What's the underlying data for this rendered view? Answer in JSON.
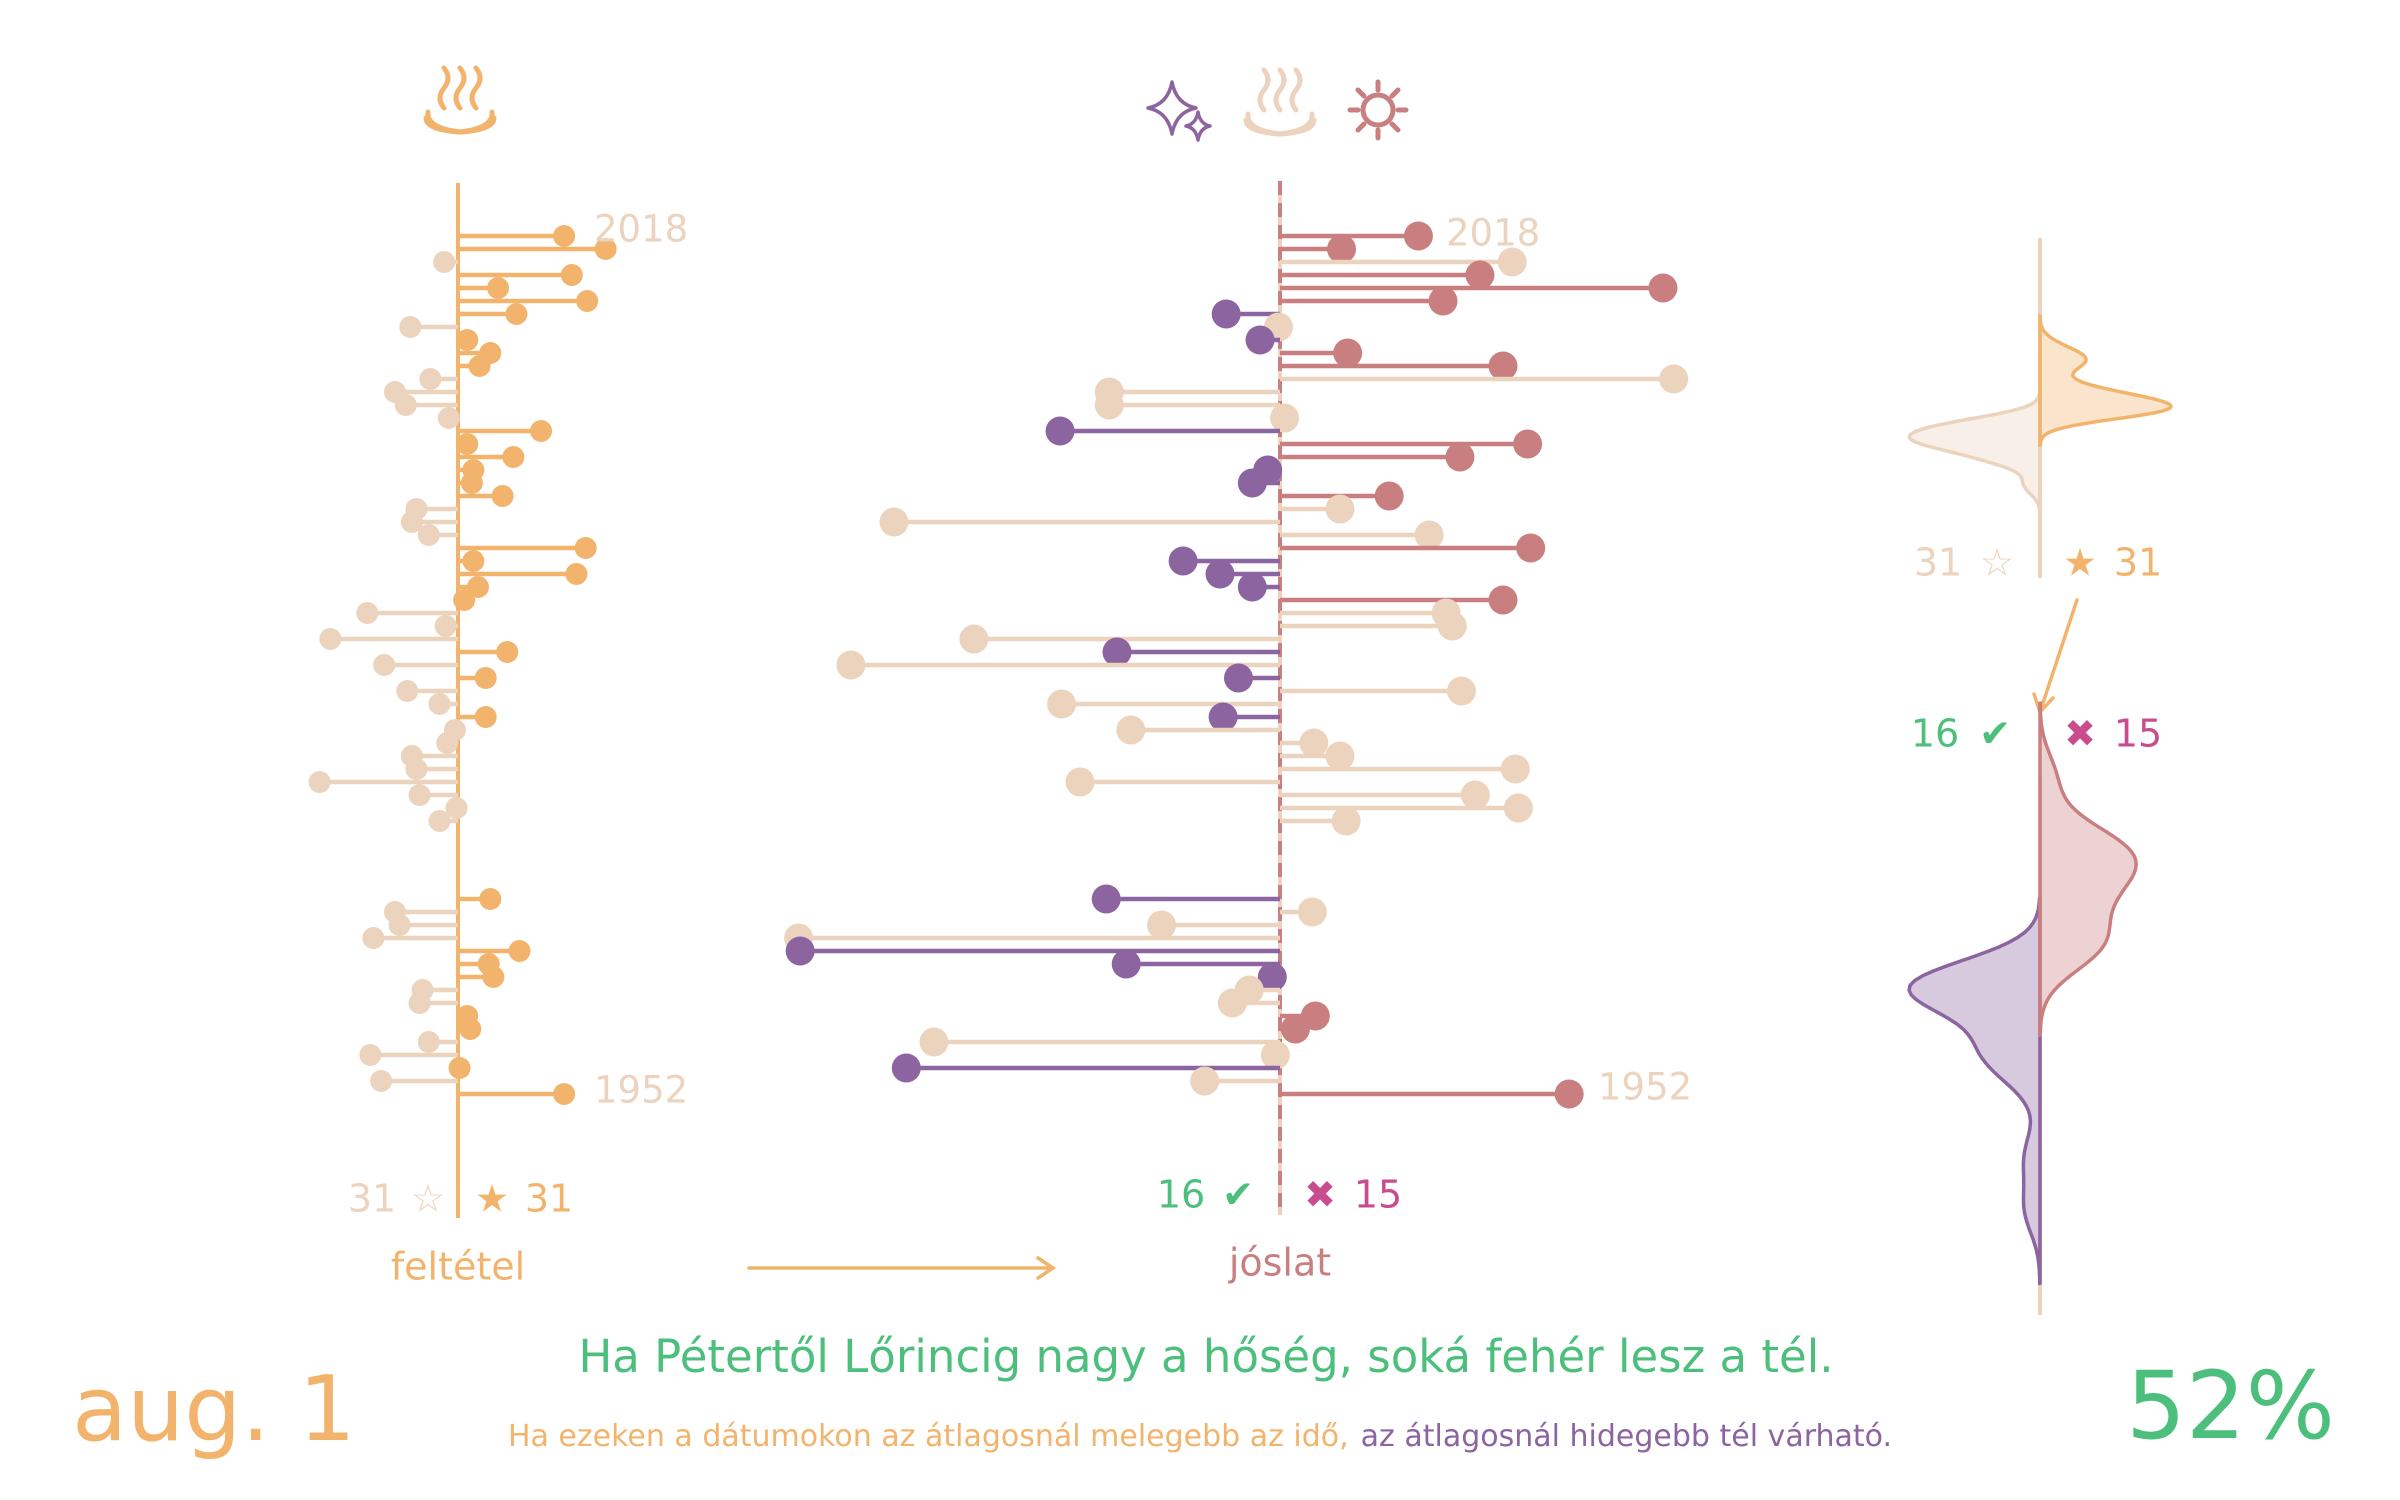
{
  "date": "aug. 1",
  "proverb": "Ha Pétertől Lőrincig nagy a hőség, soká fehér lesz a tél.",
  "explanation": {
    "warm": "Ha ezeken a dátumokon az átlagosnál melegebb az idő,",
    "cold": "az átlagosnál hidegebb tél várható."
  },
  "accuracy": {
    "value": 52,
    "label": "52%"
  },
  "chart_data": [
    {
      "type": "lollipop",
      "label": "feltétel",
      "first_year": 2018,
      "last_year": 1952,
      "values": [
        6.9,
        9.6,
        -0.9,
        7.4,
        2.6,
        8.4,
        3.8,
        -3.1,
        0.6,
        2.1,
        1.4,
        -1.8,
        -4.1,
        -3.4,
        -0.6,
        5.4,
        0.6,
        3.6,
        1.0,
        0.9,
        2.9,
        -2.7,
        -3.0,
        -1.9,
        8.3,
        1.0,
        7.7,
        1.3,
        0.4,
        -5.9,
        -0.8,
        -8.3,
        3.2,
        -4.8,
        1.8,
        -3.3,
        -1.2,
        1.8,
        -0.2,
        -0.7,
        -3.0,
        -2.7,
        -9.0,
        -2.5,
        -0.1,
        -1.2,
        null,
        null,
        null,
        null,
        null,
        2.1,
        -4.1,
        -3.8,
        -5.5,
        4.0,
        2.0,
        2.3,
        -2.3,
        -2.5,
        0.6,
        0.8,
        -1.9,
        -5.7,
        0.1,
        -5.0,
        6.9
      ],
      "counts": {
        "below": 31,
        "above": 31
      },
      "symbols": {
        "below": "☆",
        "above": "★"
      },
      "colors": {
        "above": "#f2b46c",
        "below": "#ebd3bd"
      }
    },
    {
      "type": "lollipop",
      "label": "jóslat",
      "first_year": 2018,
      "last_year": 1952,
      "values": [
        9.0,
        4.0,
        15.1,
        13.0,
        24.9,
        10.6,
        -3.5,
        -0.1,
        -1.3,
        4.4,
        14.5,
        25.6,
        -11.1,
        -11.1,
        0.3,
        -14.3,
        16.1,
        11.7,
        -0.8,
        -1.8,
        7.1,
        3.9,
        -25.1,
        9.7,
        16.3,
        -6.3,
        -3.9,
        -1.8,
        14.5,
        10.8,
        11.2,
        -19.9,
        -10.6,
        -27.9,
        -2.7,
        11.8,
        -14.2,
        -3.7,
        -9.7,
        2.2,
        3.9,
        15.3,
        -13.0,
        12.7,
        15.5,
        4.3,
        null,
        null,
        null,
        null,
        null,
        -11.3,
        2.1,
        -7.7,
        -31.3,
        -31.2,
        -10.0,
        -0.5,
        -2.0,
        -3.1,
        2.3,
        1.0,
        -22.5,
        -0.3,
        -24.3,
        -4.9,
        18.8
      ],
      "counts": {
        "correct": 16,
        "wrong": 15
      },
      "symbols": {
        "correct": "✔",
        "wrong": "✖"
      },
      "colors": {
        "wrong": "#c97f7f",
        "correct": "#8c64a0",
        "other": "#ebd3bd",
        "correct_count": "#4cbf7c",
        "wrong_count": "#c94d8e"
      }
    }
  ]
}
